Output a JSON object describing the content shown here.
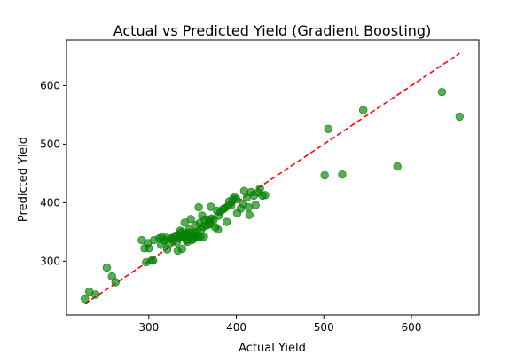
{
  "chart_data": {
    "type": "scatter",
    "title": "Actual vs Predicted Yield (Gradient Boosting)",
    "xlabel": "Actual Yield",
    "ylabel": "Predicted Yield",
    "xlim": [
      206,
      677
    ],
    "ylim": [
      208,
      678
    ],
    "xticks": [
      300,
      400,
      500,
      600
    ],
    "yticks": [
      300,
      400,
      500,
      600
    ],
    "grid": false,
    "point_color": "#008000",
    "point_alpha": 0.65,
    "reference_line": {
      "style": "dashed",
      "color": "#ff0000",
      "x": [
        227,
        655
      ],
      "y": [
        227,
        655
      ]
    },
    "series": [
      {
        "points": [
          [
            227,
            236
          ],
          [
            232,
            248
          ],
          [
            239,
            243
          ],
          [
            252,
            289
          ],
          [
            258,
            274
          ],
          [
            262,
            264
          ],
          [
            292,
            336
          ],
          [
            295,
            322
          ],
          [
            297,
            298
          ],
          [
            299,
            331
          ],
          [
            300,
            322
          ],
          [
            303,
            301
          ],
          [
            305,
            301
          ],
          [
            306,
            336
          ],
          [
            312,
            339
          ],
          [
            314,
            328
          ],
          [
            315,
            341
          ],
          [
            318,
            335
          ],
          [
            320,
            340
          ],
          [
            321,
            320
          ],
          [
            323,
            330
          ],
          [
            325,
            339
          ],
          [
            327,
            337
          ],
          [
            329,
            341
          ],
          [
            331,
            344
          ],
          [
            332,
            332
          ],
          [
            333,
            318
          ],
          [
            334,
            339
          ],
          [
            335,
            344
          ],
          [
            336,
            352
          ],
          [
            337,
            349
          ],
          [
            338,
            321
          ],
          [
            339,
            341
          ],
          [
            340,
            345
          ],
          [
            341,
            366
          ],
          [
            342,
            348
          ],
          [
            343,
            336
          ],
          [
            344,
            333
          ],
          [
            345,
            343
          ],
          [
            346,
            354
          ],
          [
            347,
            349
          ],
          [
            348,
            372
          ],
          [
            349,
            336
          ],
          [
            350,
            345
          ],
          [
            351,
            338
          ],
          [
            352,
            349
          ],
          [
            353,
            362
          ],
          [
            354,
            343
          ],
          [
            355,
            349
          ],
          [
            356,
            341
          ],
          [
            357,
            392
          ],
          [
            358,
            365
          ],
          [
            359,
            342
          ],
          [
            360,
            354
          ],
          [
            361,
            378
          ],
          [
            362,
            359
          ],
          [
            363,
            342
          ],
          [
            364,
            371
          ],
          [
            366,
            361
          ],
          [
            368,
            371
          ],
          [
            369,
            366
          ],
          [
            370,
            363
          ],
          [
            371,
            393
          ],
          [
            372,
            373
          ],
          [
            374,
            371
          ],
          [
            376,
            358
          ],
          [
            378,
            386
          ],
          [
            379,
            354
          ],
          [
            380,
            378
          ],
          [
            382,
            385
          ],
          [
            385,
            389
          ],
          [
            387,
            391
          ],
          [
            389,
            367
          ],
          [
            391,
            395
          ],
          [
            392,
            402
          ],
          [
            394,
            395
          ],
          [
            396,
            406
          ],
          [
            398,
            409
          ],
          [
            400,
            406
          ],
          [
            401,
            382
          ],
          [
            405,
            390
          ],
          [
            408,
            398
          ],
          [
            409,
            420
          ],
          [
            412,
            409
          ],
          [
            414,
            392
          ],
          [
            415,
            379
          ],
          [
            417,
            418
          ],
          [
            420,
            412
          ],
          [
            422,
            396
          ],
          [
            425,
            417
          ],
          [
            427,
            424
          ],
          [
            430,
            412
          ],
          [
            433,
            413
          ],
          [
            501,
            447
          ],
          [
            505,
            526
          ],
          [
            521,
            448
          ],
          [
            545,
            558
          ],
          [
            584,
            462
          ],
          [
            635,
            589
          ],
          [
            655,
            547
          ]
        ]
      }
    ]
  }
}
